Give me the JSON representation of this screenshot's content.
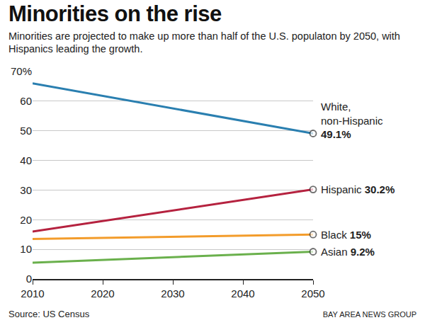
{
  "chart_data": {
    "type": "line",
    "title": "Minorities on the rise",
    "subtitle": "Minorities are projected to make up more than half of the U.S. populaton by 2050, with Hispanics leading the growth.",
    "source": "Source: US Census",
    "credit": "BAY AREA NEWS GROUP",
    "x": [
      2010,
      2050
    ],
    "series": [
      {
        "name": "White, non-Hispanic",
        "color": "#2a7fb0",
        "values": [
          66,
          49.1
        ],
        "value_labels": [
          null,
          "49.1%"
        ]
      },
      {
        "name": "Hispanic",
        "color": "#b5223f",
        "values": [
          16,
          30.2
        ],
        "value_labels": [
          null,
          "30.2%"
        ]
      },
      {
        "name": "Black",
        "color": "#f39c2b",
        "values": [
          13.5,
          15
        ],
        "value_labels": [
          null,
          "15%"
        ]
      },
      {
        "name": "Asian",
        "color": "#6ab04c",
        "values": [
          5.5,
          9.2
        ],
        "value_labels": [
          null,
          "9.2%"
        ]
      }
    ],
    "xlim": [
      2010,
      2050
    ],
    "xticks": [
      2010,
      2020,
      2030,
      2040,
      2050
    ],
    "ylim": [
      0,
      70
    ],
    "yticks": [
      0,
      10,
      20,
      30,
      40,
      50,
      60,
      {
        "value": 70,
        "label": "70%"
      }
    ],
    "grid": true,
    "legend": "none",
    "marker": "open circle",
    "data_labels": true
  }
}
